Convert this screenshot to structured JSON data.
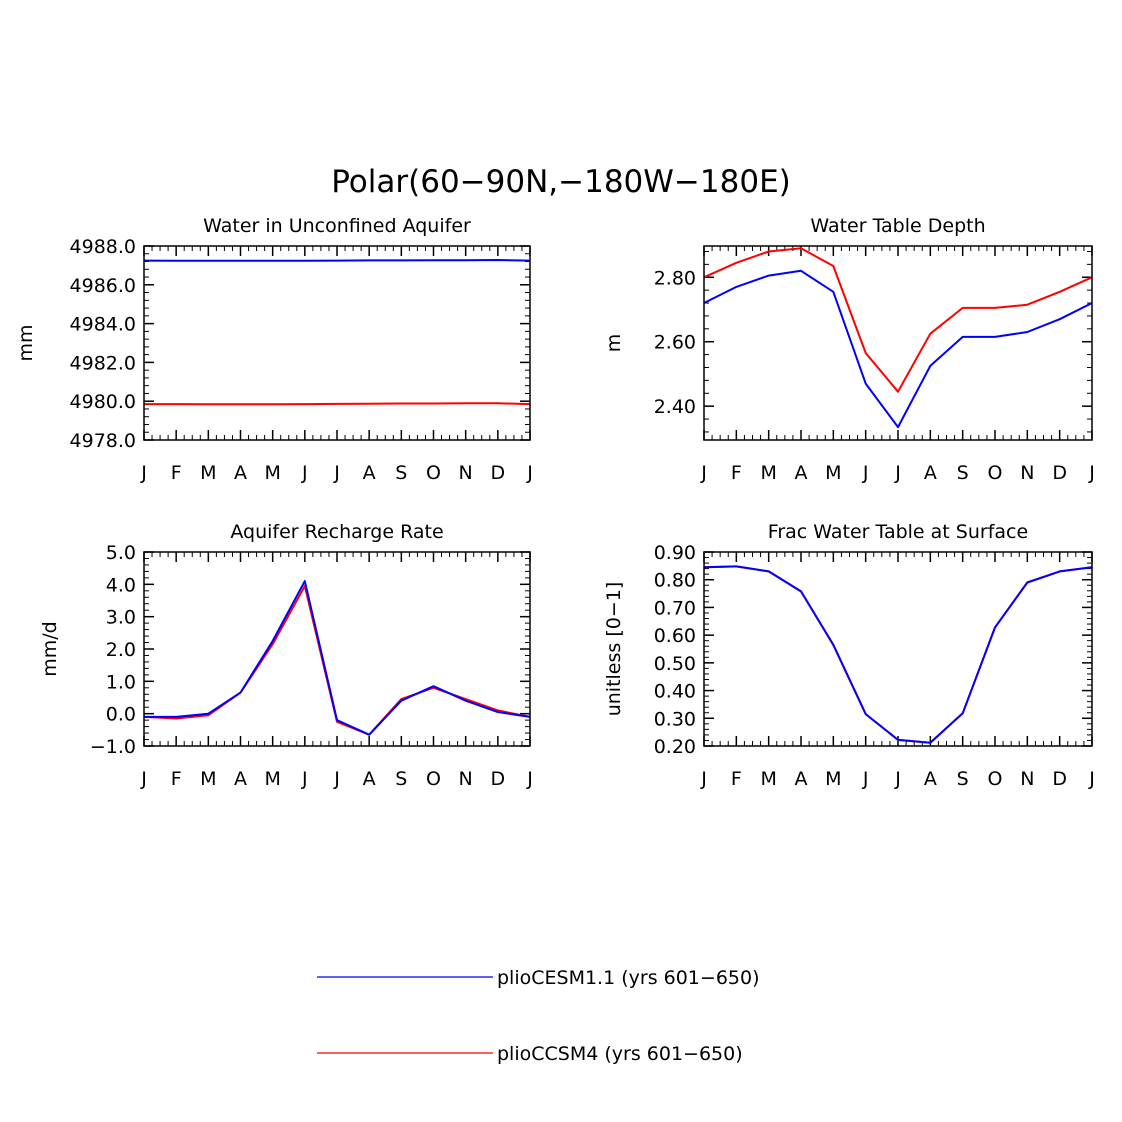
{
  "figure_title": "Polar(60−90N,−180W−180E)",
  "legend": [
    {
      "label": "plioCESM1.1 (yrs 601−650)",
      "color": "#0000ff"
    },
    {
      "label": "plioCCSM4 (yrs 601−650)",
      "color": "#ff0000"
    }
  ],
  "chart_data": [
    {
      "type": "line",
      "title": "Water in Unconfined Aquifer",
      "ylabel": "mm",
      "xlabel": "",
      "x_ticks": [
        "J",
        "F",
        "M",
        "A",
        "M",
        "J",
        "J",
        "A",
        "S",
        "O",
        "N",
        "D",
        "J"
      ],
      "ylim": [
        4978.0,
        4988.0
      ],
      "y_ticks": [
        "4978.0",
        "4980.0",
        "4982.0",
        "4984.0",
        "4986.0",
        "4988.0"
      ],
      "y_tick_values": [
        4978,
        4980,
        4982,
        4984,
        4986,
        4988
      ],
      "series": [
        {
          "name": "plioCCSM4 (yrs 601−650)",
          "color": "#ff0000",
          "values": [
            4979.85,
            4979.85,
            4979.84,
            4979.84,
            4979.84,
            4979.85,
            4979.86,
            4979.87,
            4979.88,
            4979.88,
            4979.89,
            4979.89,
            4979.85
          ]
        },
        {
          "name": "plioCESM1.1 (yrs 601−650)",
          "color": "#0000ff",
          "values": [
            4987.25,
            4987.24,
            4987.24,
            4987.24,
            4987.24,
            4987.24,
            4987.25,
            4987.26,
            4987.26,
            4987.27,
            4987.27,
            4987.28,
            4987.25
          ]
        }
      ]
    },
    {
      "type": "line",
      "title": "Water Table Depth",
      "ylabel": "m",
      "xlabel": "",
      "x_ticks": [
        "J",
        "F",
        "M",
        "A",
        "M",
        "J",
        "J",
        "A",
        "S",
        "O",
        "N",
        "D",
        "J"
      ],
      "ylim": [
        2.295,
        2.897
      ],
      "y_ticks": [
        "2.40",
        "2.60",
        "2.80"
      ],
      "y_tick_values": [
        2.4,
        2.6,
        2.8
      ],
      "series": [
        {
          "name": "plioCCSM4 (yrs 601−650)",
          "color": "#ff0000",
          "values": [
            2.8,
            2.845,
            2.88,
            2.89,
            2.835,
            2.565,
            2.445,
            2.625,
            2.705,
            2.705,
            2.715,
            2.755,
            2.8
          ]
        },
        {
          "name": "plioCESM1.1 (yrs 601−650)",
          "color": "#0000ff",
          "values": [
            2.72,
            2.77,
            2.805,
            2.82,
            2.755,
            2.47,
            2.335,
            2.525,
            2.615,
            2.615,
            2.63,
            2.67,
            2.72
          ]
        }
      ]
    },
    {
      "type": "line",
      "title": "Aquifer Recharge Rate",
      "ylabel": "mm/d",
      "xlabel": "",
      "x_ticks": [
        "J",
        "F",
        "M",
        "A",
        "M",
        "J",
        "J",
        "A",
        "S",
        "O",
        "N",
        "D",
        "J"
      ],
      "ylim": [
        -1.0,
        5.0
      ],
      "y_ticks": [
        "−1.0",
        "0.0",
        "1.0",
        "2.0",
        "3.0",
        "4.0",
        "5.0"
      ],
      "y_tick_values": [
        -1,
        0,
        1,
        2,
        3,
        4,
        5
      ],
      "series": [
        {
          "name": "plioCCSM4 (yrs 601−650)",
          "color": "#ff0000",
          "values": [
            -0.1,
            -0.15,
            -0.05,
            0.65,
            2.15,
            3.95,
            -0.25,
            -0.65,
            0.45,
            0.8,
            0.45,
            0.1,
            -0.1
          ]
        },
        {
          "name": "plioCESM1.1 (yrs 601−650)",
          "color": "#0000ff",
          "values": [
            -0.1,
            -0.1,
            0.0,
            0.65,
            2.25,
            4.1,
            -0.2,
            -0.65,
            0.4,
            0.85,
            0.4,
            0.05,
            -0.1
          ]
        }
      ]
    },
    {
      "type": "line",
      "title": "Frac Water Table at Surface",
      "ylabel": "unitless [0−1]",
      "xlabel": "",
      "x_ticks": [
        "J",
        "F",
        "M",
        "A",
        "M",
        "J",
        "J",
        "A",
        "S",
        "O",
        "N",
        "D",
        "J"
      ],
      "ylim": [
        0.2,
        0.9
      ],
      "y_ticks": [
        "0.20",
        "0.30",
        "0.40",
        "0.50",
        "0.60",
        "0.70",
        "0.80",
        "0.90"
      ],
      "y_tick_values": [
        0.2,
        0.3,
        0.4,
        0.5,
        0.6,
        0.7,
        0.8,
        0.9
      ],
      "series": [
        {
          "name": "plioCCSM4 (yrs 601−650)",
          "color": "#ff0000",
          "values": [
            0.845,
            0.848,
            0.83,
            0.758,
            0.565,
            0.315,
            0.222,
            0.212,
            0.318,
            0.628,
            0.79,
            0.83,
            0.845
          ]
        },
        {
          "name": "plioCESM1.1 (yrs 601−650)",
          "color": "#0000ff",
          "values": [
            0.845,
            0.848,
            0.83,
            0.758,
            0.565,
            0.315,
            0.222,
            0.212,
            0.318,
            0.628,
            0.79,
            0.83,
            0.845
          ]
        }
      ]
    }
  ]
}
